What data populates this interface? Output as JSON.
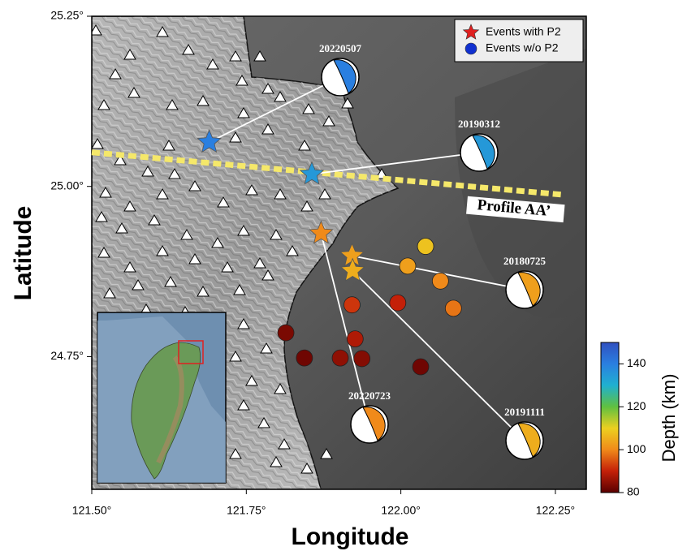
{
  "map": {
    "xlabel": "Longitude",
    "ylabel": "Latitude",
    "xlim": [
      121.5,
      122.3
    ],
    "ylim": [
      24.555,
      25.25
    ],
    "xticks": [
      {
        "value": 121.5,
        "label": "121.50°"
      },
      {
        "value": 121.75,
        "label": "121.75°"
      },
      {
        "value": 122.0,
        "label": "122.00°"
      },
      {
        "value": 122.25,
        "label": "122.25°"
      }
    ],
    "yticks": [
      {
        "value": 25.25,
        "label": "25.25°"
      },
      {
        "value": 25.0,
        "label": "25.00°"
      },
      {
        "value": 24.75,
        "label": "24.75°"
      }
    ],
    "legend": {
      "position": "upper right",
      "entries": [
        "Events with P2",
        "Events w/o P2"
      ],
      "colors": [
        "#e02020",
        "#1030d0"
      ]
    },
    "events_with_p2": {
      "labels": [
        "20220507",
        "20190312",
        "20220723",
        "20180725",
        "20191111"
      ],
      "lon": [
        121.69,
        121.856,
        121.871,
        121.921,
        121.922
      ],
      "lat": [
        25.065,
        25.018,
        24.931,
        24.898,
        24.876
      ],
      "depth": [
        140,
        135,
        100,
        103,
        105
      ]
    },
    "events_without_p2": {
      "lon": [
        122.04,
        122.011,
        122.064,
        122.085,
        121.995,
        121.921,
        121.926,
        121.814,
        121.844,
        121.902,
        121.937,
        122.032
      ],
      "lat": [
        24.912,
        24.883,
        24.861,
        24.821,
        24.829,
        24.826,
        24.776,
        24.785,
        24.748,
        24.748,
        24.747,
        24.735
      ],
      "depth": [
        108,
        103,
        100,
        98,
        90,
        92,
        88,
        83,
        82,
        85,
        84,
        82
      ]
    },
    "profile": {
      "label": "Profile AA’",
      "lon": [
        121.5,
        122.259
      ],
      "lat": [
        25.05,
        24.988
      ],
      "color": "#f5e86a"
    },
    "colorbar": {
      "label": "Depth (km)",
      "clim": [
        80,
        150
      ],
      "ticks": [
        80,
        100,
        120,
        140
      ],
      "colors": [
        "#5a0000",
        "#c42008",
        "#f08a1a",
        "#ecd020",
        "#60c040",
        "#20b0d0",
        "#2a7fe0",
        "#3050c0"
      ]
    }
  }
}
